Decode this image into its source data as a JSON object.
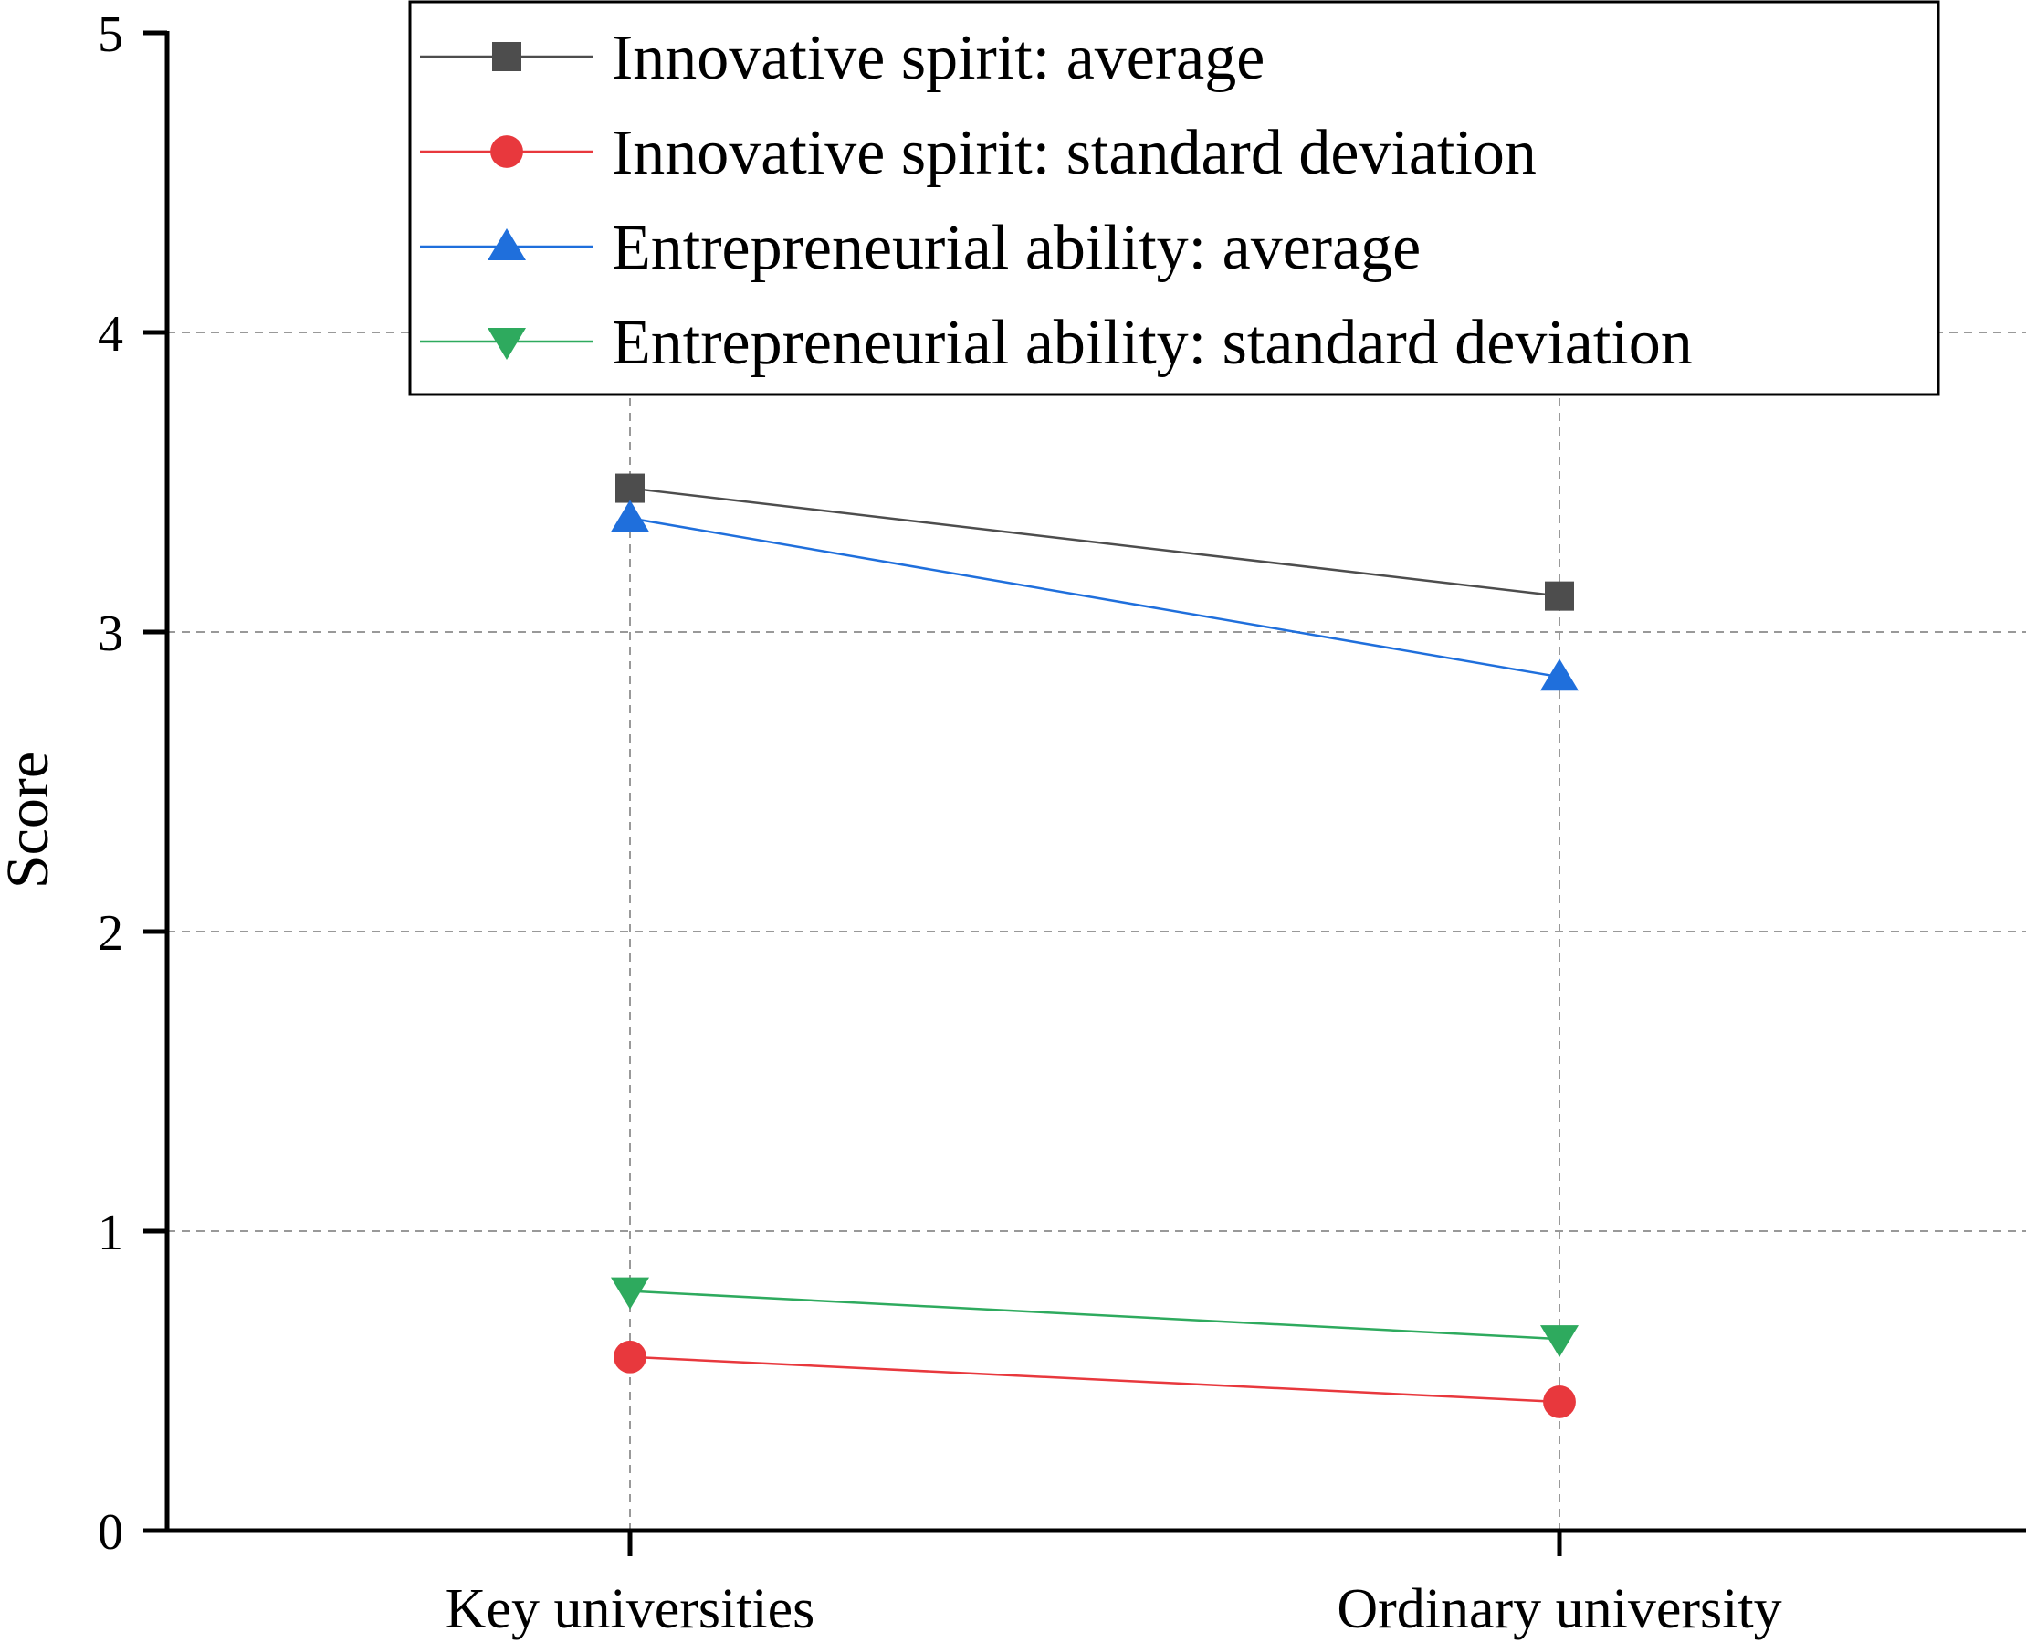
{
  "chart_data": {
    "type": "line",
    "title": "",
    "xlabel": "",
    "ylabel": "Score",
    "categories": [
      "Key universities",
      "Ordinary university"
    ],
    "ylim": [
      0,
      5
    ],
    "yticks": [
      0,
      1,
      2,
      3,
      4,
      5
    ],
    "grid": true,
    "legend_position": "top-right",
    "series": [
      {
        "name": "Innovative spirit: average",
        "values": [
          3.48,
          3.12
        ],
        "color": "#4d4d4d",
        "marker": "square"
      },
      {
        "name": "Innovative spirit: standard deviation",
        "values": [
          0.58,
          0.43
        ],
        "color": "#e8383d",
        "marker": "circle"
      },
      {
        "name": "Entrepreneurial ability: average",
        "values": [
          3.38,
          2.85
        ],
        "color": "#1f6fdc",
        "marker": "triangle-up"
      },
      {
        "name": "Entrepreneurial ability: standard deviation",
        "values": [
          0.8,
          0.64
        ],
        "color": "#2eaa5e",
        "marker": "triangle-down"
      }
    ]
  }
}
